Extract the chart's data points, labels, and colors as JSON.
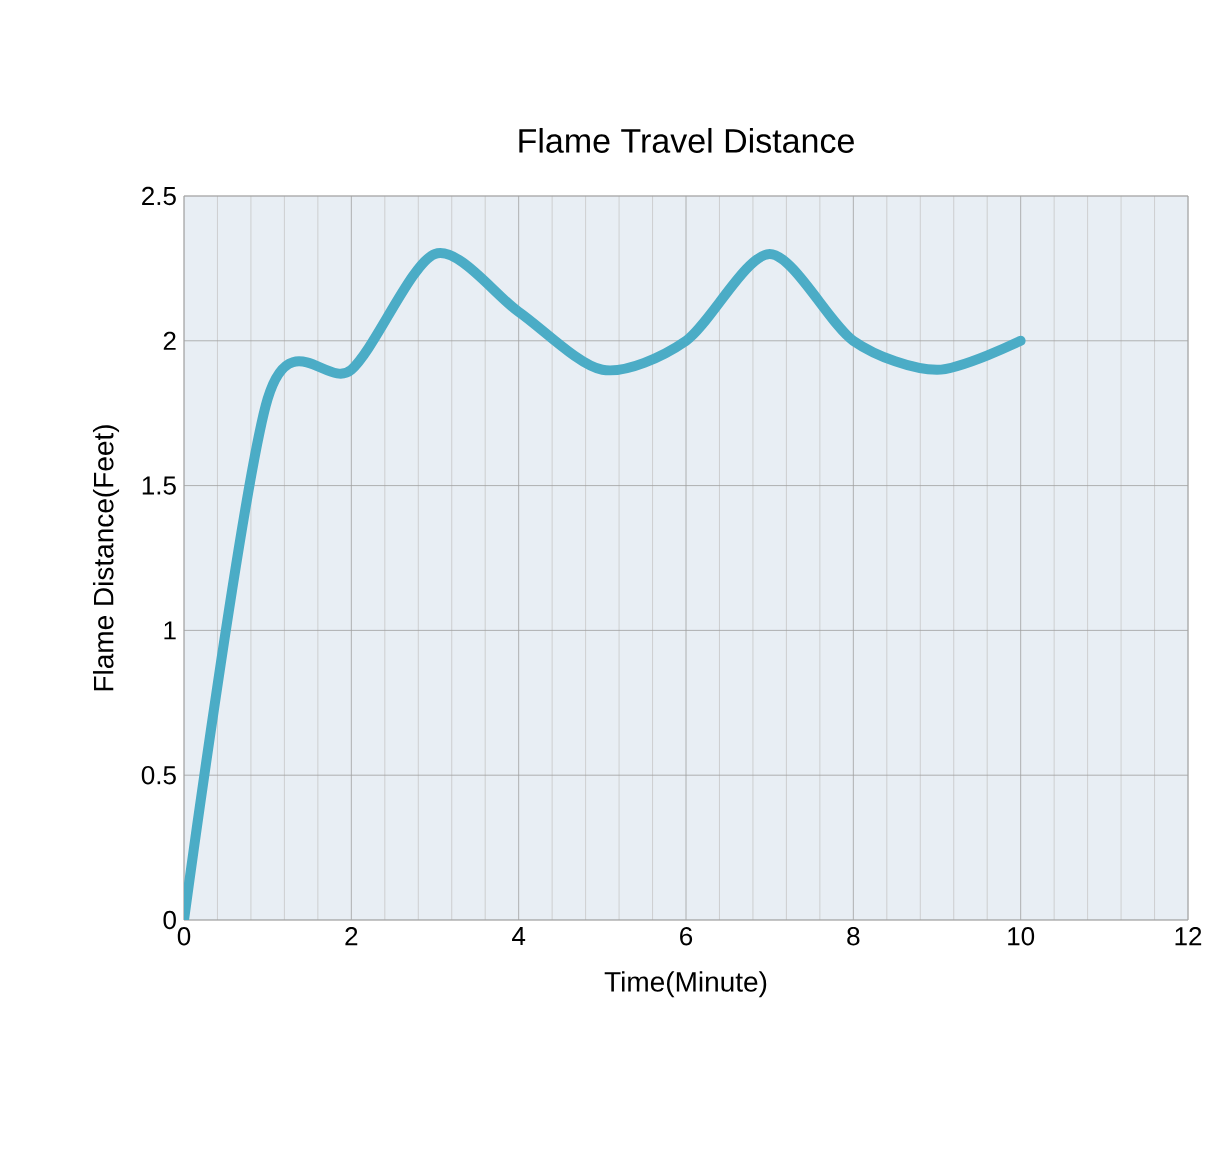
{
  "chart_data": {
    "type": "line",
    "title": "Flame Travel Distance",
    "xlabel": "Time(Minute)",
    "ylabel": "Flame Distance(Feet)",
    "x": [
      0,
      1,
      2,
      3,
      4,
      5,
      6,
      7,
      8,
      9,
      10
    ],
    "series": [
      {
        "color": "#4bacc6",
        "values": [
          0,
          1.8,
          1.9,
          2.3,
          2.1,
          1.9,
          2.0,
          2.3,
          2.0,
          1.9,
          2.0
        ]
      }
    ],
    "xlim": [
      0,
      12
    ],
    "xticks": [
      0,
      2,
      4,
      6,
      8,
      10,
      12
    ],
    "ylim": [
      0,
      2.5
    ],
    "yticks": [
      0,
      0.5,
      1,
      1.5,
      2,
      2.5
    ],
    "grid": true,
    "marker": "none",
    "line_style": "solid"
  }
}
